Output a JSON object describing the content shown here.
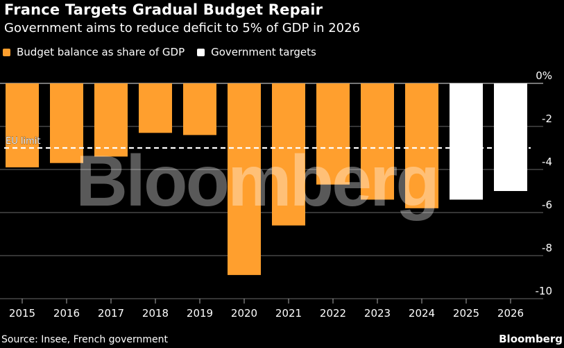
{
  "chart_data": {
    "type": "bar",
    "title": "France Targets Gradual Budget Repair",
    "subtitle": "Government aims to reduce deficit to 5% of GDP in 2026",
    "categories": [
      "2015",
      "2016",
      "2017",
      "2018",
      "2019",
      "2020",
      "2021",
      "2022",
      "2023",
      "2024",
      "2025",
      "2026"
    ],
    "series": [
      {
        "name": "Budget balance as share of GDP",
        "color": "#FF9F2E",
        "values": [
          -3.9,
          -3.7,
          -3.4,
          -2.3,
          -2.4,
          -8.9,
          -6.6,
          -4.7,
          -5.4,
          -5.8,
          null,
          null
        ]
      },
      {
        "name": "Government targets",
        "color": "#FFFFFF",
        "values": [
          null,
          null,
          null,
          null,
          null,
          null,
          null,
          null,
          null,
          null,
          -5.4,
          -5.0
        ]
      }
    ],
    "reference_line": {
      "label": "EU limit",
      "value": -3
    },
    "yticks": [
      {
        "v": 0,
        "label": "0%"
      },
      {
        "v": -2,
        "label": "-2"
      },
      {
        "v": -4,
        "label": "-4"
      },
      {
        "v": -6,
        "label": "-6"
      },
      {
        "v": -8,
        "label": "-8"
      },
      {
        "v": -10,
        "label": "-10"
      }
    ],
    "ylim": [
      -10,
      0
    ],
    "xlabel": "",
    "ylabel": "",
    "grid": true,
    "legend_position": "top-left",
    "watermark": "Bloomberg"
  },
  "footer": {
    "source": "Source: Insee, French government",
    "brand": "Bloomberg"
  }
}
